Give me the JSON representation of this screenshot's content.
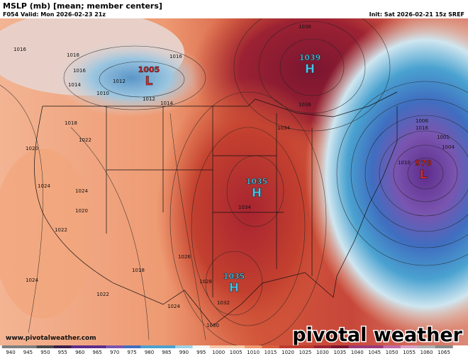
{
  "header": {
    "title": "MSLP (mb) [mean; member centers]",
    "valid": "F054 Valid: Mon 2026-02-23 21z",
    "init": "Init: Sat 2026-02-21 15z SREF"
  },
  "centers": [
    {
      "letter": "L",
      "value": 1005
    },
    {
      "letter": "H",
      "value": 1039
    },
    {
      "letter": "H",
      "value": 1035
    },
    {
      "letter": "H",
      "value": 1035
    },
    {
      "letter": "L",
      "value": 978
    }
  ],
  "isobar_labels": [
    1016,
    1018,
    1016,
    1014,
    1012,
    1010,
    1012,
    1014,
    1016,
    1018,
    1020,
    1022,
    1024,
    1024,
    1022,
    1020,
    1024,
    1022,
    1018,
    1024,
    1026,
    1028,
    1030,
    1032,
    1034,
    1036,
    1036,
    1034,
    1016,
    1010,
    1006,
    1001,
    1004
  ],
  "watermark": "www.pivotalweather.com",
  "logo": "pivotal weather",
  "colorbar": [
    940,
    945,
    950,
    955,
    960,
    965,
    970,
    975,
    980,
    985,
    990,
    995,
    1000,
    1005,
    1010,
    1015,
    1020,
    1025,
    1030,
    1035,
    1040,
    1045,
    1050,
    1055,
    1060,
    1065
  ]
}
